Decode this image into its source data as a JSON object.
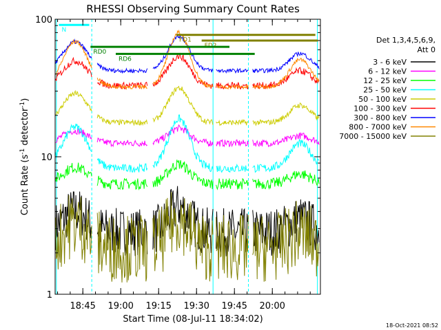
{
  "chart_data": {
    "type": "line",
    "title": "RHESSI Observing Summary Count Rates",
    "xlabel": "Start Time (08-Jul-11 18:34:02)",
    "ylabel_main": "Count Rate (s",
    "ylabel_sup1": "-1",
    "ylabel_mid": " detector",
    "ylabel_sup2": "-1",
    "ylabel_end": ")",
    "yscale": "log",
    "ylim": [
      1,
      100
    ],
    "xlim_minutes": [
      0,
      105
    ],
    "y_ticks": [
      {
        "value": 1,
        "label": "1"
      },
      {
        "value": 10,
        "label": "10"
      },
      {
        "value": 100,
        "label": "100"
      }
    ],
    "x_ticks": [
      {
        "value": 10.97,
        "label": "18:45"
      },
      {
        "value": 25.97,
        "label": "19:00"
      },
      {
        "value": 40.97,
        "label": "19:15"
      },
      {
        "value": 55.97,
        "label": "19:30"
      },
      {
        "value": 70.97,
        "label": "19:45"
      },
      {
        "value": 85.97,
        "label": "20:00"
      }
    ],
    "legend_header1": "Det 1,3,4,5,6,9,",
    "legend_header2": "Att 0",
    "legend_position": "right",
    "series": [
      {
        "name": "3 - 6 keV",
        "color": "#000000",
        "level": 3.2,
        "amp": 0.25,
        "noise": 0.35
      },
      {
        "name": "6 - 12 keV",
        "color": "#ff00ff",
        "level": 13.5,
        "amp": 0.15,
        "noise": 0.05
      },
      {
        "name": "12 - 25 keV",
        "color": "#00ff00",
        "level": 7.0,
        "amp": 0.2,
        "noise": 0.08
      },
      {
        "name": "25 - 50 keV",
        "color": "#00ffff",
        "level": 10.5,
        "amp": 0.5,
        "noise": 0.06
      },
      {
        "name": "50 - 100 keV",
        "color": "#cccc00",
        "level": 21.0,
        "amp": 0.35,
        "noise": 0.04
      },
      {
        "name": "100 - 300 keV",
        "color": "#ff0000",
        "level": 38.0,
        "amp": 0.3,
        "noise": 0.05
      },
      {
        "name": "300 - 800 keV",
        "color": "#0000ff",
        "level": 50.0,
        "amp": 0.35,
        "noise": 0.03
      },
      {
        "name": "800 - 7000 keV",
        "color": "#ff8800",
        "level": 42.0,
        "amp": 0.55,
        "noise": 0.03
      },
      {
        "name": "7000 - 15000 keV",
        "color": "#808000",
        "level": 2.5,
        "amp": 0.3,
        "noise": 0.5
      }
    ],
    "annotations": [
      {
        "label": "N",
        "color": "#00ffff",
        "x": 1.5,
        "x2": 13.5,
        "y": 91
      },
      {
        "label": "FD1",
        "color": "#808000",
        "x": 48,
        "y": 77
      },
      {
        "label": "FD2",
        "color": "#808000",
        "x": 58,
        "y": 70
      },
      {
        "label": "RD0",
        "color": "#008000",
        "x": 14,
        "y": 63
      },
      {
        "label": "RD6",
        "color": "#008000",
        "x": 24,
        "y": 56
      }
    ],
    "timestamp": "18-Oct-2021 08:52"
  }
}
